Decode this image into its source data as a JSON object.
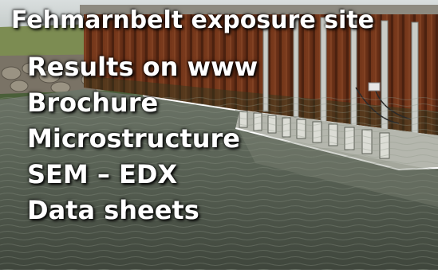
{
  "title": "Fehmarnbelt exposure site",
  "items": [
    "Results on www",
    "Brochure",
    "Microstructure",
    "SEM – EDX",
    "Data sheets"
  ]
}
